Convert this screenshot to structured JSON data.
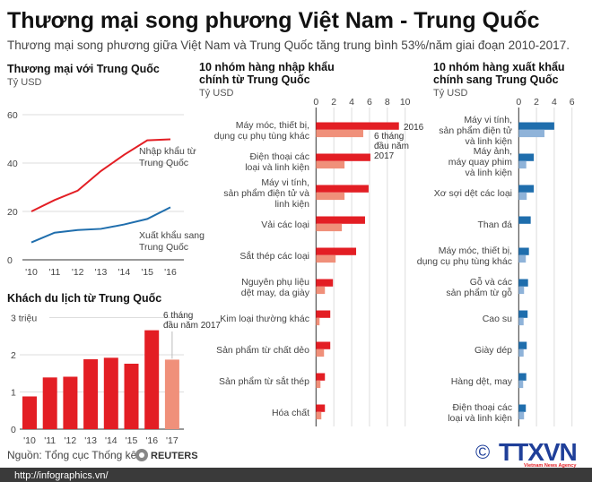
{
  "title": "Thương mại song phương Việt Nam - Trung Quốc",
  "subtitle": "Thương mại song phương giữa Việt Nam và Trung Quốc tăng trung bình 53%/năm giai đoạn 2010-2017.",
  "source": "Nguồn: Tổng cục Thống kê",
  "reuters_logo": "REUTERS",
  "url": "http://infographics.vn/",
  "ttxvn_logo": {
    "text": "TTXVN",
    "tagline": "Vietnam News Agency",
    "copyright": "©"
  },
  "colors": {
    "red": "#e31e24",
    "light_red": "#f0907a",
    "blue": "#1f6ead",
    "light_blue": "#8fb3d9",
    "footer": "#3a3a3a"
  },
  "chart_data": [
    {
      "type": "line",
      "title": "Thương mại với Trung Quốc",
      "ylabel": "Tỷ USD",
      "categories": [
        "'10",
        "'11",
        "'12",
        "'13",
        "'14",
        "'15",
        "'16"
      ],
      "yticks": [
        0,
        20,
        40,
        60
      ],
      "ylim": [
        0,
        60
      ],
      "grid": true,
      "series": [
        {
          "name": "Nhập khẩu từ Trung Quốc",
          "name_lines": [
            "Nhập khẩu từ",
            "Trung Quốc"
          ],
          "color": "#e31e24",
          "values": [
            20,
            24.7,
            28.6,
            36.7,
            43.4,
            49.4,
            49.8
          ]
        },
        {
          "name": "Xuất khẩu sang Trung Quốc",
          "name_lines": [
            "Xuất khẩu sang",
            "Trung Quốc"
          ],
          "color": "#1f6ead",
          "values": [
            7.2,
            11.2,
            12.3,
            12.8,
            14.6,
            16.9,
            21.7
          ]
        }
      ]
    },
    {
      "type": "bar",
      "title": "Khách du lịch từ Trung Quốc",
      "categories": [
        "'10",
        "'11",
        "'12",
        "'13",
        "'14",
        "'15",
        "'16",
        "'17"
      ],
      "values": [
        0.88,
        1.39,
        1.41,
        1.88,
        1.92,
        1.76,
        2.66,
        1.87
      ],
      "ytick_labels": [
        "0",
        "1",
        "2",
        "3 triệu"
      ],
      "yticks": [
        0,
        1,
        2,
        3
      ],
      "ylim": [
        0,
        3
      ],
      "annotation_lines": [
        "6 tháng",
        "đầu năm 2017"
      ],
      "grid": true
    },
    {
      "type": "bar",
      "orientation": "horizontal",
      "title_lines": [
        "10 nhóm hàng nhập khẩu",
        "chính từ Trung Quốc"
      ],
      "unit": "Tỷ USD",
      "xticks": [
        0,
        2,
        4,
        6,
        8,
        10
      ],
      "xlim": [
        0,
        10
      ],
      "legend": {
        "2016": "2016",
        "2017_lines": [
          "6 tháng",
          "đầu năm",
          "2017"
        ]
      },
      "categories": [
        [
          "Máy móc, thiết bị,",
          "dụng cụ phụ tùng khác"
        ],
        [
          "Điện thoại các",
          "loại và linh kiện"
        ],
        [
          "Máy vi tính,",
          "sản phẩm điện tử và",
          "linh kiện"
        ],
        [
          "Vải các loại"
        ],
        [
          "Sắt thép các loại"
        ],
        [
          "Nguyên phụ liệu",
          "dệt may, da giày"
        ],
        [
          "Kim loại thường khác"
        ],
        [
          "Sản phẩm từ chất dẻo"
        ],
        [
          "Sản phẩm từ sắt thép"
        ],
        [
          "Hóa chất"
        ]
      ],
      "series": [
        {
          "name": "2016",
          "color": "#e31e24",
          "values": [
            9.3,
            6.1,
            5.9,
            5.5,
            4.5,
            1.9,
            1.6,
            1.6,
            1.0,
            1.0
          ]
        },
        {
          "name": "6 tháng đầu năm 2017",
          "color": "#f0907a",
          "values": [
            5.3,
            3.2,
            3.2,
            2.9,
            2.2,
            1.0,
            0.4,
            0.9,
            0.5,
            0.6
          ]
        }
      ]
    },
    {
      "type": "bar",
      "orientation": "horizontal",
      "title_lines": [
        "10 nhóm hàng xuất khẩu",
        "chính sang Trung Quốc"
      ],
      "unit": "Tỷ USD",
      "xticks": [
        0,
        2,
        4,
        6
      ],
      "xlim": [
        0,
        6
      ],
      "categories": [
        [
          "Máy vi tính,",
          "sản phẩm điện tử",
          "và linh kiện"
        ],
        [
          "Máy ảnh,",
          "máy quay phim",
          "và linh kiện"
        ],
        [
          "Xơ sợi dệt các loại"
        ],
        [
          "Than đá"
        ],
        [
          "Máy móc, thiết bị,",
          "dụng cụ phụ tùng khác"
        ],
        [
          "Gỗ và các",
          "sản phẩm từ gỗ"
        ],
        [
          "Cao su"
        ],
        [
          "Giày dép"
        ],
        [
          "Hàng dệt, may"
        ],
        [
          "Điện thoại các",
          "loại và linh kiện"
        ]
      ],
      "series": [
        {
          "name": "2016",
          "color": "#1f6ead",
          "values": [
            4.0,
            1.7,
            1.7,
            1.35,
            1.15,
            1.05,
            1.0,
            0.9,
            0.85,
            0.8
          ]
        },
        {
          "name": "6 tháng đầu năm 2017",
          "color": "#8fb3d9",
          "values": [
            2.9,
            0.85,
            0.9,
            0,
            0.8,
            0.6,
            0.55,
            0.55,
            0.5,
            0.6
          ]
        }
      ]
    }
  ]
}
